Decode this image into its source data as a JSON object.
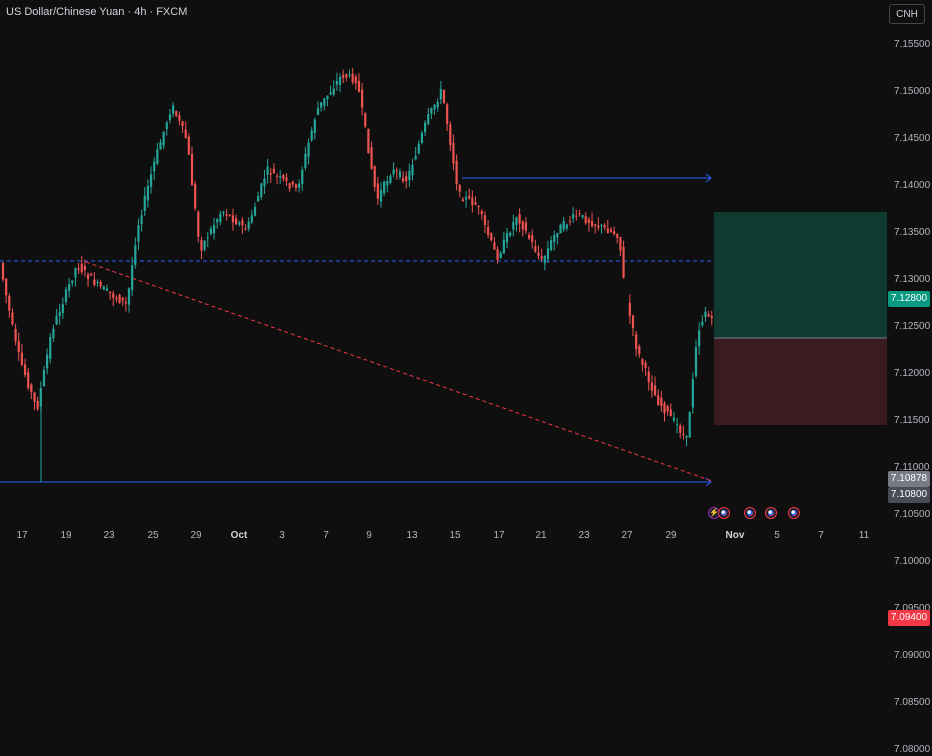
{
  "header": {
    "title": "US Dollar/Chinese Yuan · 4h · FXCM",
    "currency_button": "CNH"
  },
  "price_axis": {
    "ticks": [
      "7.15500",
      "7.15000",
      "7.14500",
      "7.14000",
      "7.13500",
      "7.13000",
      "7.12500",
      "7.12000",
      "7.11500",
      "7.11000",
      "7.10500",
      "7.10000",
      "7.09500",
      "7.09000",
      "7.08500",
      "7.08000"
    ],
    "labels": {
      "take_profit": "7.12800",
      "current": "7.10878",
      "entry": "7.10800",
      "stop_loss": "7.09400"
    }
  },
  "time_axis": {
    "ticks": [
      "17",
      "19",
      "23",
      "25",
      "29",
      "Oct",
      "3",
      "7",
      "9",
      "13",
      "15",
      "17",
      "21",
      "23",
      "27",
      "29",
      "Nov",
      "5",
      "7",
      "11"
    ]
  },
  "colors": {
    "up": "#26a69a",
    "down": "#ef5350",
    "hline": "#2962ff",
    "trend": "#f23645",
    "tp_zone": "#0f3a2f",
    "sl_zone": "#3a1b1f",
    "tp_label": "#089981",
    "sl_label": "#f23645",
    "current_label": "#787b86"
  },
  "events": [
    "bolt-icon",
    "us-flag-icon",
    "us-flag-icon",
    "us-flag-icon",
    "us-flag-icon"
  ]
}
